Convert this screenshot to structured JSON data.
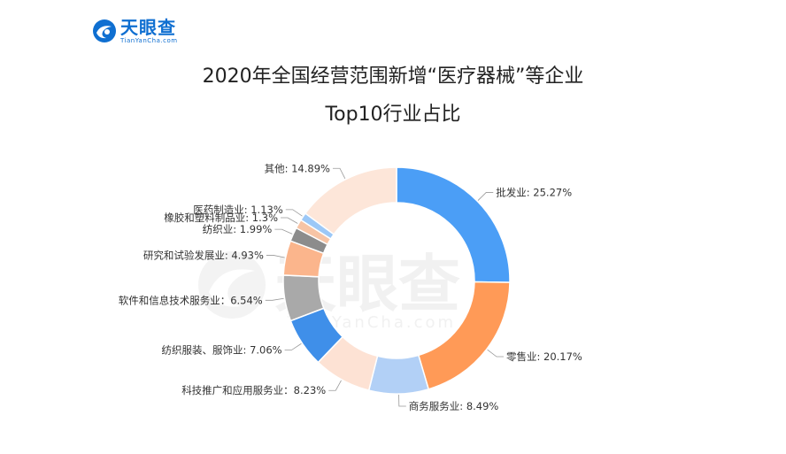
{
  "brand": {
    "name": "天眼查",
    "sub": "TianYanCha.com",
    "color": "#0f6fd1"
  },
  "watermark": {
    "name": "天眼查",
    "sub": "TianYanCha.com"
  },
  "title_line1": "2020年全国经营范围新增“医疗器械”等企业",
  "title_line2": "Top10行业占比",
  "chart_data": {
    "type": "pie",
    "donut": true,
    "title": "2020年全国经营范围新增“医疗器械”等企业 Top10行业占比",
    "series": [
      {
        "name": "批发业",
        "value": 25.27,
        "color": "#4b9ef6"
      },
      {
        "name": "零售业",
        "value": 20.17,
        "color": "#ff9a57"
      },
      {
        "name": "商务服务业",
        "value": 8.49,
        "color": "#b2d0f6"
      },
      {
        "name": "科技推广和应用服务业",
        "value": 8.23,
        "color": "#fde2d4"
      },
      {
        "name": "纺织服装、服饰业",
        "value": 7.06,
        "color": "#3f8fe9"
      },
      {
        "name": "软件和信息技术服务业",
        "value": 6.54,
        "color": "#a9a9a9"
      },
      {
        "name": "研究和试验发展业",
        "value": 4.93,
        "color": "#fbb58c"
      },
      {
        "name": "纺织业",
        "value": 1.99,
        "color": "#8c8c8c"
      },
      {
        "name": "橡胶和塑料制品业",
        "value": 1.3,
        "color": "#f7c4a5"
      },
      {
        "name": "医药制造业",
        "value": 1.13,
        "color": "#9cc8f7"
      },
      {
        "name": "其他",
        "value": 14.89,
        "color": "#fde6d9"
      }
    ],
    "labels": [
      "批发业: 25.27%",
      "零售业: 20.17%",
      "商务服务业: 8.49%",
      "科技推广和应用服务业：8.23%",
      "纺织服装、服饰业: 7.06%",
      "软件和信息技术服务业：6.54%",
      "研究和试验发展业: 4.93%",
      "纺织业: 1.99%",
      "橡胶和塑料制品业: 1.3%",
      "医药制造业: 1.13%",
      "其他: 14.89%"
    ],
    "legend": "none"
  }
}
